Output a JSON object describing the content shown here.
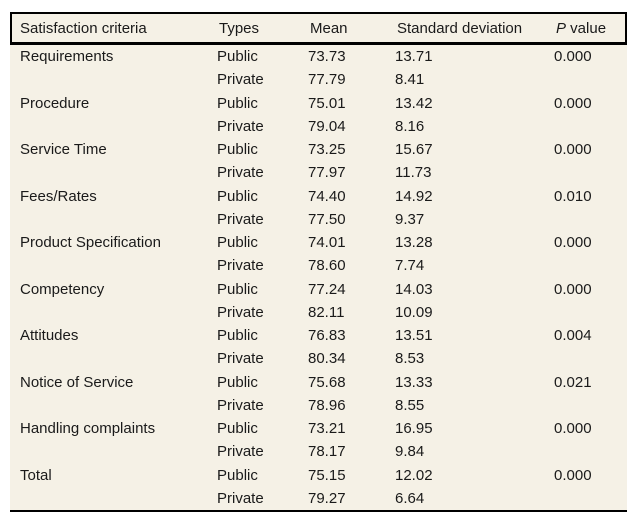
{
  "page": {
    "background": "#ffffff"
  },
  "table": {
    "background": "#f5f1e6",
    "border_color": "#000000",
    "text_color": "#1a1a1a",
    "header": {
      "criteria": "Satisfaction criteria",
      "types": "Types",
      "mean": "Mean",
      "sd": "Standard deviation",
      "p_italic": "P",
      "p_rest": " value"
    },
    "rows": [
      {
        "criteria": "Requirements",
        "type": "Public",
        "mean": "73.73",
        "sd": "13.71",
        "p": "0.000"
      },
      {
        "criteria": "",
        "type": "Private",
        "mean": "77.79",
        "sd": "8.41",
        "p": ""
      },
      {
        "criteria": "Procedure",
        "type": "Public",
        "mean": "75.01",
        "sd": "13.42",
        "p": "0.000"
      },
      {
        "criteria": "",
        "type": "Private",
        "mean": "79.04",
        "sd": "8.16",
        "p": ""
      },
      {
        "criteria": "Service Time",
        "type": "Public",
        "mean": "73.25",
        "sd": "15.67",
        "p": "0.000"
      },
      {
        "criteria": "",
        "type": "Private",
        "mean": "77.97",
        "sd": "11.73",
        "p": ""
      },
      {
        "criteria": "Fees/Rates",
        "type": "Public",
        "mean": "74.40",
        "sd": "14.92",
        "p": "0.010"
      },
      {
        "criteria": "",
        "type": "Private",
        "mean": "77.50",
        "sd": "9.37",
        "p": ""
      },
      {
        "criteria": "Product Specification",
        "type": "Public",
        "mean": "74.01",
        "sd": "13.28",
        "p": "0.000"
      },
      {
        "criteria": "",
        "type": "Private",
        "mean": "78.60",
        "sd": "7.74",
        "p": ""
      },
      {
        "criteria": "Competency",
        "type": "Public",
        "mean": "77.24",
        "sd": "14.03",
        "p": "0.000"
      },
      {
        "criteria": "",
        "type": "Private",
        "mean": "82.11",
        "sd": "10.09",
        "p": ""
      },
      {
        "criteria": "Attitudes",
        "type": "Public",
        "mean": "76.83",
        "sd": "13.51",
        "p": "0.004"
      },
      {
        "criteria": "",
        "type": "Private",
        "mean": "80.34",
        "sd": "8.53",
        "p": ""
      },
      {
        "criteria": "Notice of Service",
        "type": "Public",
        "mean": "75.68",
        "sd": "13.33",
        "p": "0.021"
      },
      {
        "criteria": "",
        "type": "Private",
        "mean": "78.96",
        "sd": "8.55",
        "p": ""
      },
      {
        "criteria": "Handling complaints",
        "type": "Public",
        "mean": "73.21",
        "sd": "16.95",
        "p": "0.000"
      },
      {
        "criteria": "",
        "type": "Private",
        "mean": "78.17",
        "sd": "9.84",
        "p": ""
      },
      {
        "criteria": "Total",
        "type": "Public",
        "mean": "75.15",
        "sd": "12.02",
        "p": "0.000"
      },
      {
        "criteria": "",
        "type": "Private",
        "mean": "79.27",
        "sd": "6.64",
        "p": ""
      }
    ]
  },
  "chart_data": {
    "type": "table",
    "title": "",
    "columns": [
      "Satisfaction criteria",
      "Types",
      "Mean",
      "Standard deviation",
      "P value"
    ],
    "series": [
      {
        "name": "Public",
        "categories": [
          "Requirements",
          "Procedure",
          "Service Time",
          "Fees/Rates",
          "Product Specification",
          "Competency",
          "Attitudes",
          "Notice of Service",
          "Handling complaints",
          "Total"
        ],
        "mean": [
          73.73,
          75.01,
          73.25,
          74.4,
          74.01,
          77.24,
          76.83,
          75.68,
          73.21,
          75.15
        ],
        "sd": [
          13.71,
          13.42,
          15.67,
          14.92,
          13.28,
          14.03,
          13.51,
          13.33,
          16.95,
          12.02
        ]
      },
      {
        "name": "Private",
        "categories": [
          "Requirements",
          "Procedure",
          "Service Time",
          "Fees/Rates",
          "Product Specification",
          "Competency",
          "Attitudes",
          "Notice of Service",
          "Handling complaints",
          "Total"
        ],
        "mean": [
          77.79,
          79.04,
          77.97,
          77.5,
          78.6,
          82.11,
          80.34,
          78.96,
          78.17,
          79.27
        ],
        "sd": [
          8.41,
          8.16,
          11.73,
          9.37,
          7.74,
          10.09,
          8.53,
          8.55,
          9.84,
          6.64
        ]
      }
    ],
    "p_values": [
      0.0,
      0.0,
      0.0,
      0.01,
      0.0,
      0.0,
      0.004,
      0.021,
      0.0,
      0.0
    ]
  }
}
